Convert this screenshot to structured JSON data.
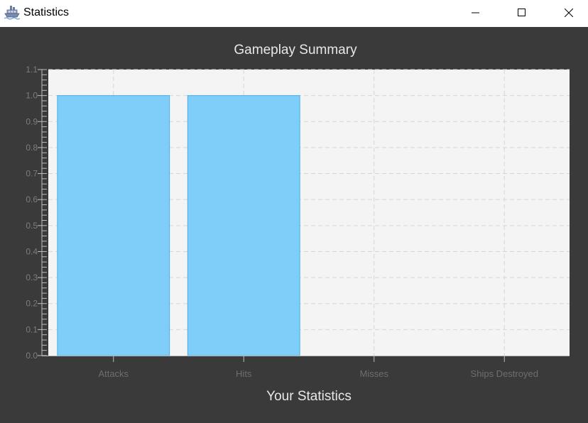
{
  "window": {
    "title": "Statistics",
    "icon": "ship-icon"
  },
  "colors": {
    "bar_fill": "#7fcdf9",
    "bar_stroke": "#4aaee8",
    "plot_bg": "#f4f4f4",
    "window_bg": "#3a3a3a"
  },
  "chart_data": {
    "type": "bar",
    "title": "Gameplay Summary",
    "xlabel": "Your Statistics",
    "ylabel": "",
    "categories": [
      "Attacks",
      "Hits",
      "Misses",
      "Ships Destroyed"
    ],
    "values": [
      1,
      1,
      0,
      0
    ],
    "ylim": [
      0,
      1.1
    ],
    "yticks": [
      "0.0",
      "0.1",
      "0.2",
      "0.3",
      "0.4",
      "0.5",
      "0.6",
      "0.7",
      "0.8",
      "0.9",
      "1.0",
      "1.1"
    ],
    "grid": true,
    "legend": "none"
  }
}
